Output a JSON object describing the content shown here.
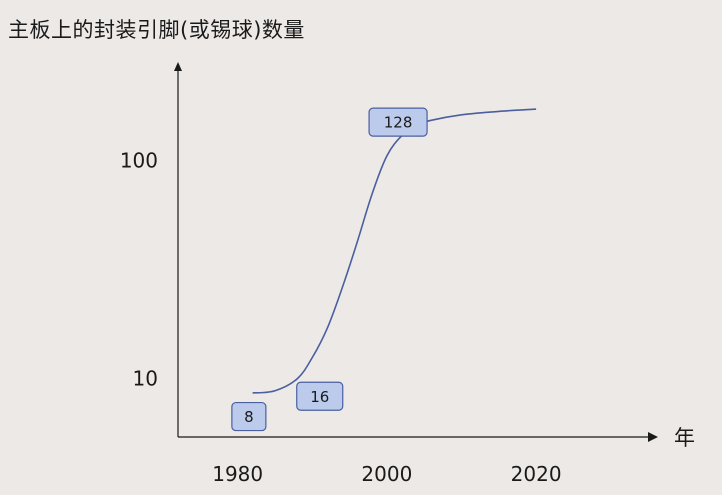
{
  "chart_data": {
    "type": "line",
    "title": "主板上的封装引脚(或锡球)数量",
    "xlabel": "年",
    "ylabel": "",
    "y_scale": "log",
    "xlim": [
      1972,
      2035
    ],
    "ylim": [
      5.4,
      260
    ],
    "x_ticks": [
      1980,
      2000,
      2020
    ],
    "y_ticks": [
      10,
      100
    ],
    "x_tick_labels": [
      "1980",
      "2000",
      "2020"
    ],
    "y_tick_labels": [
      "10",
      "100"
    ],
    "grid": false,
    "series": [
      {
        "color": "#4a5fa0",
        "x": [
          1982,
          1985,
          1988,
          1990,
          1992,
          1994,
          1996,
          1998,
          2000,
          2002,
          2004,
          2006,
          2010,
          2015,
          2020
        ],
        "y": [
          8.6,
          8.8,
          10.0,
          12.5,
          17,
          26,
          42,
          70,
          105,
          130,
          145,
          153,
          162,
          168,
          172
        ]
      }
    ],
    "annotations": [
      {
        "text": "8",
        "x": 1981.5,
        "y": 6.7
      },
      {
        "text": "16",
        "x": 1991,
        "y": 8.3
      },
      {
        "text": "128",
        "x": 2001.5,
        "y": 150
      }
    ],
    "colors": {
      "background": "#ede9e6",
      "axis": "#1a1a1a",
      "label_fill": "#bccbec",
      "label_stroke": "#4a5fa0"
    }
  }
}
